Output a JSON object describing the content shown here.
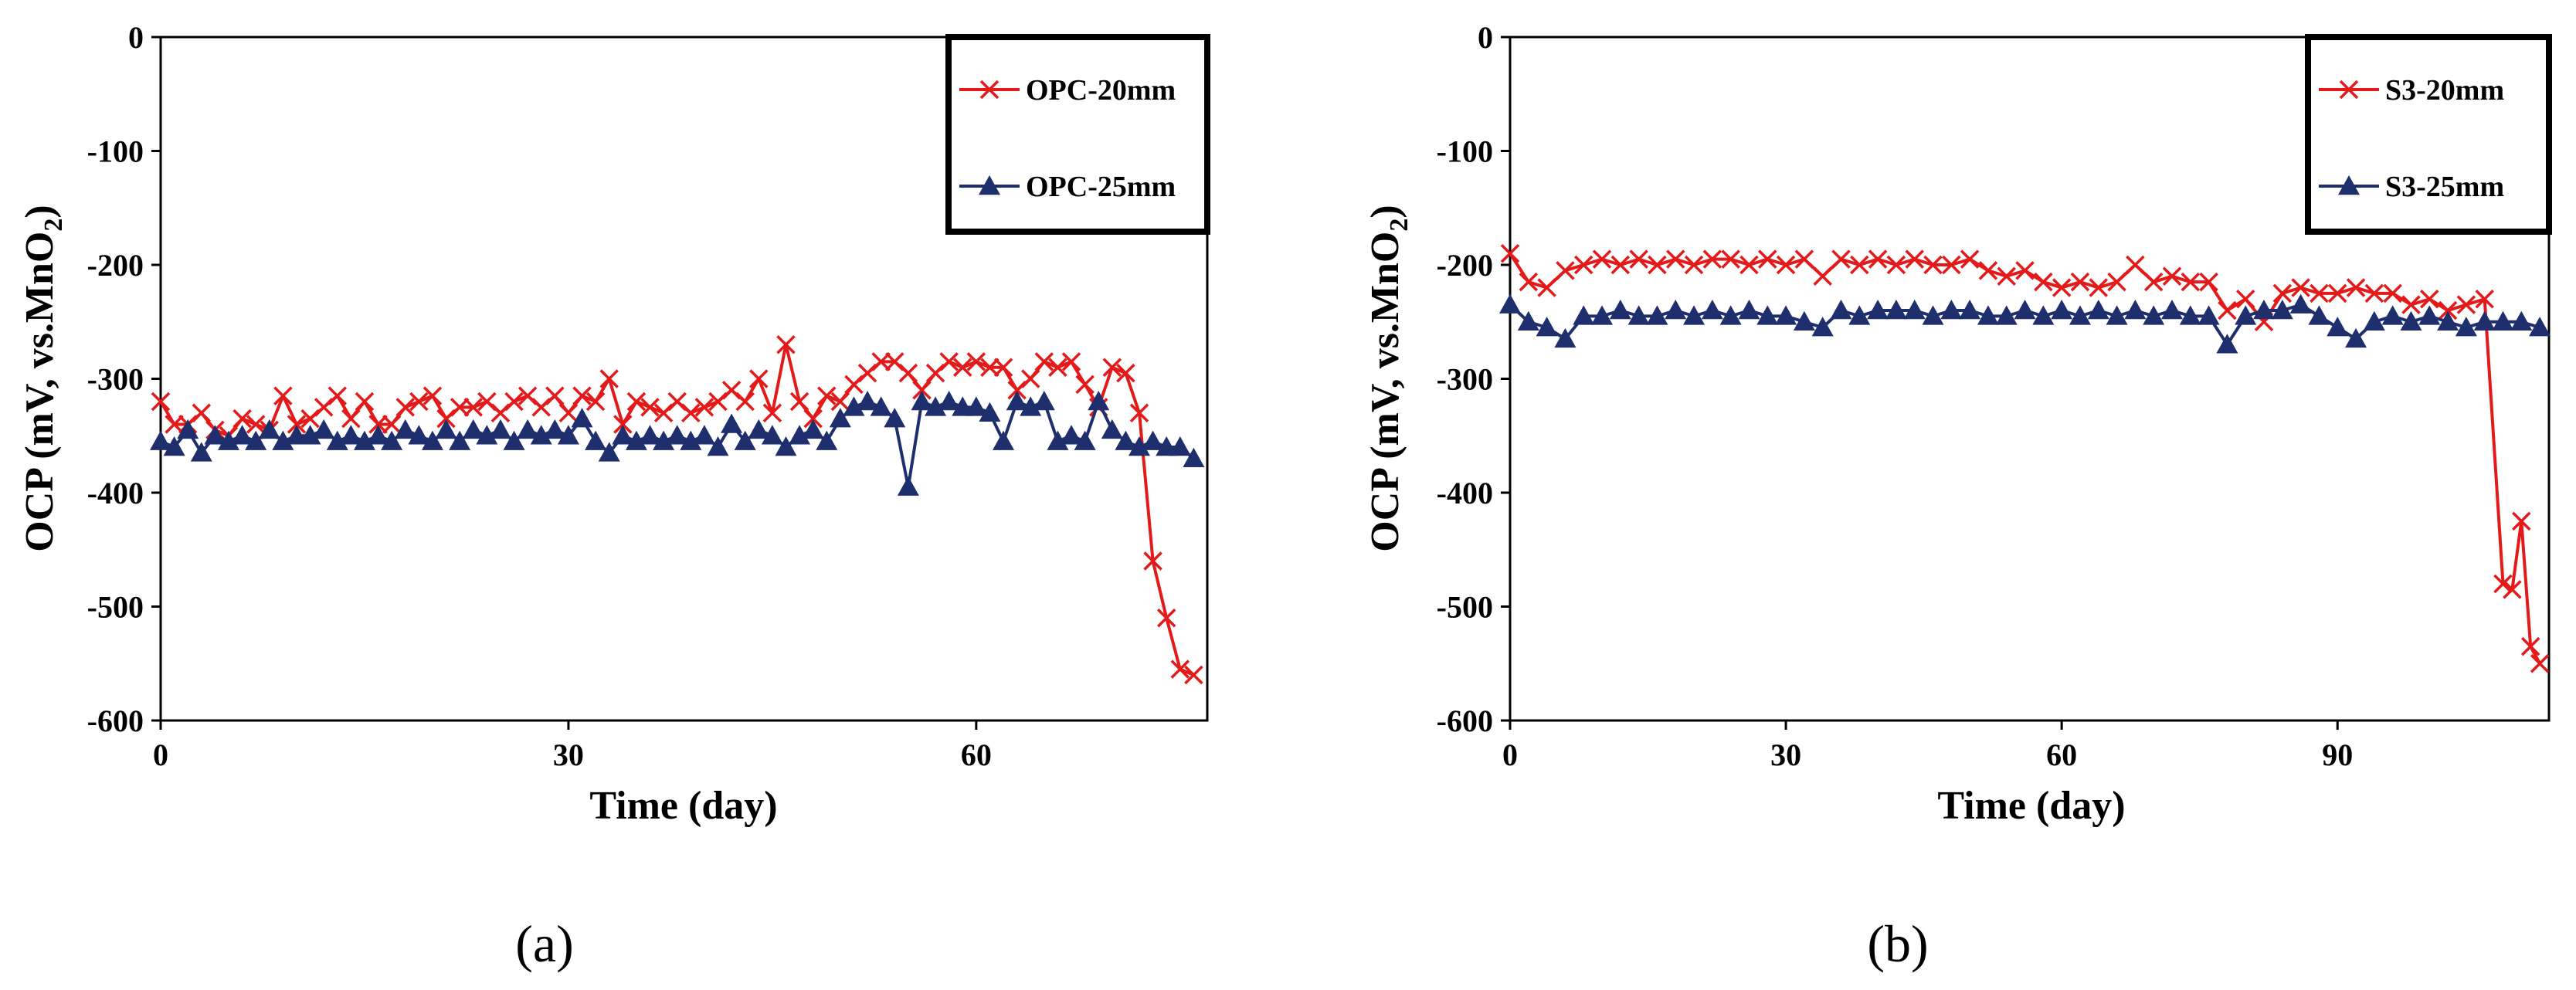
{
  "figure": {
    "panel_labels": [
      "(a)",
      "(b)"
    ]
  },
  "chart_data": [
    {
      "type": "line",
      "panel": "(a)",
      "title": "",
      "xlabel": "Time (day)",
      "ylabel_main": "OCP (mV, vs.MnO",
      "ylabel_sub": "2",
      "ylabel_end": ")",
      "xlim": [
        0,
        77
      ],
      "ylim": [
        -600,
        0
      ],
      "xticks": [
        0,
        30,
        60
      ],
      "yticks": [
        0,
        -100,
        -200,
        -300,
        -400,
        -500,
        -600
      ],
      "legend_position": "top-right",
      "series": [
        {
          "name": "OPC-20mm",
          "color": "#e41a1a",
          "marker": "x",
          "x": [
            0,
            1,
            2,
            3,
            4,
            5,
            6,
            7,
            8,
            9,
            10,
            11,
            12,
            13,
            14,
            15,
            16,
            17,
            18,
            19,
            20,
            21,
            22,
            23,
            24,
            25,
            26,
            27,
            28,
            29,
            30,
            31,
            32,
            33,
            34,
            35,
            36,
            37,
            38,
            39,
            40,
            41,
            42,
            43,
            44,
            45,
            46,
            47,
            48,
            49,
            50,
            51,
            52,
            53,
            54,
            55,
            56,
            57,
            58,
            59,
            60,
            61,
            62,
            63,
            64,
            65,
            66,
            67,
            68,
            69,
            70,
            71,
            72,
            73,
            74,
            75,
            76
          ],
          "values": [
            -320,
            -340,
            -340,
            -330,
            -345,
            -350,
            -335,
            -340,
            -345,
            -315,
            -340,
            -335,
            -325,
            -315,
            -335,
            -320,
            -340,
            -340,
            -325,
            -320,
            -315,
            -335,
            -325,
            -325,
            -320,
            -330,
            -320,
            -315,
            -325,
            -315,
            -330,
            -315,
            -320,
            -300,
            -340,
            -320,
            -325,
            -330,
            -320,
            -330,
            -325,
            -320,
            -310,
            -320,
            -300,
            -330,
            -270,
            -320,
            -335,
            -315,
            -320,
            -305,
            -295,
            -285,
            -285,
            -295,
            -310,
            -295,
            -285,
            -290,
            -285,
            -290,
            -290,
            -310,
            -300,
            -285,
            -290,
            -285,
            -305,
            -325,
            -290,
            -295,
            -330,
            -460,
            -510,
            -555,
            -560
          ]
        },
        {
          "name": "OPC-25mm",
          "color": "#1f2f6e",
          "marker": "triangle",
          "x": [
            0,
            1,
            2,
            3,
            4,
            5,
            6,
            7,
            8,
            9,
            10,
            11,
            12,
            13,
            14,
            15,
            16,
            17,
            18,
            19,
            20,
            21,
            22,
            23,
            24,
            25,
            26,
            27,
            28,
            29,
            30,
            31,
            32,
            33,
            34,
            35,
            36,
            37,
            38,
            39,
            40,
            41,
            42,
            43,
            44,
            45,
            46,
            47,
            48,
            49,
            50,
            51,
            52,
            53,
            54,
            55,
            56,
            57,
            58,
            59,
            60,
            61,
            62,
            63,
            64,
            65,
            66,
            67,
            68,
            69,
            70,
            71,
            72,
            73,
            74,
            75,
            76
          ],
          "values": [
            -355,
            -360,
            -345,
            -365,
            -350,
            -355,
            -350,
            -355,
            -345,
            -355,
            -350,
            -350,
            -345,
            -355,
            -350,
            -355,
            -350,
            -355,
            -345,
            -350,
            -355,
            -345,
            -355,
            -345,
            -350,
            -345,
            -355,
            -345,
            -350,
            -345,
            -350,
            -335,
            -355,
            -365,
            -350,
            -355,
            -350,
            -355,
            -350,
            -355,
            -350,
            -360,
            -340,
            -355,
            -345,
            -350,
            -360,
            -350,
            -345,
            -355,
            -335,
            -325,
            -320,
            -325,
            -335,
            -395,
            -320,
            -325,
            -320,
            -325,
            -325,
            -330,
            -355,
            -320,
            -325,
            -320,
            -355,
            -350,
            -355,
            -320,
            -345,
            -355,
            -360,
            -355,
            -360,
            -360,
            -370
          ]
        }
      ]
    },
    {
      "type": "line",
      "panel": "(b)",
      "title": "",
      "xlabel": "Time (day)",
      "ylabel_main": "OCP (mV, vs.MnO",
      "ylabel_sub": "2",
      "ylabel_end": ")",
      "xlim": [
        0,
        113
      ],
      "ylim": [
        -600,
        0
      ],
      "xticks": [
        0,
        30,
        60,
        90
      ],
      "yticks": [
        0,
        -100,
        -200,
        -300,
        -400,
        -500,
        -600
      ],
      "legend_position": "top-right",
      "series": [
        {
          "name": "S3-20mm",
          "color": "#e41a1a",
          "marker": "x",
          "x": [
            0,
            2,
            4,
            6,
            8,
            10,
            12,
            14,
            16,
            18,
            20,
            22,
            24,
            26,
            28,
            30,
            32,
            34,
            36,
            38,
            40,
            42,
            44,
            46,
            48,
            50,
            52,
            54,
            56,
            58,
            60,
            62,
            64,
            66,
            68,
            70,
            72,
            74,
            76,
            78,
            80,
            82,
            84,
            86,
            88,
            90,
            92,
            94,
            96,
            98,
            100,
            102,
            104,
            106,
            108,
            109,
            110,
            111,
            112
          ],
          "values": [
            -190,
            -215,
            -220,
            -205,
            -200,
            -195,
            -200,
            -195,
            -200,
            -195,
            -200,
            -195,
            -195,
            -200,
            -195,
            -200,
            -195,
            -210,
            -195,
            -200,
            -195,
            -200,
            -195,
            -200,
            -200,
            -195,
            -205,
            -210,
            -205,
            -215,
            -220,
            -215,
            -220,
            -215,
            -200,
            -215,
            -210,
            -215,
            -215,
            -240,
            -230,
            -250,
            -225,
            -220,
            -225,
            -225,
            -220,
            -225,
            -225,
            -235,
            -230,
            -240,
            -235,
            -230,
            -480,
            -485,
            -425,
            -535,
            -550
          ]
        },
        {
          "name": "S3-25mm",
          "color": "#1f2f6e",
          "marker": "triangle",
          "x": [
            0,
            2,
            4,
            6,
            8,
            10,
            12,
            14,
            16,
            18,
            20,
            22,
            24,
            26,
            28,
            30,
            32,
            34,
            36,
            38,
            40,
            42,
            44,
            46,
            48,
            50,
            52,
            54,
            56,
            58,
            60,
            62,
            64,
            66,
            68,
            70,
            72,
            74,
            76,
            78,
            80,
            82,
            84,
            86,
            88,
            90,
            92,
            94,
            96,
            98,
            100,
            102,
            104,
            106,
            108,
            110,
            112
          ],
          "values": [
            -235,
            -250,
            -255,
            -265,
            -245,
            -245,
            -240,
            -245,
            -245,
            -240,
            -245,
            -240,
            -245,
            -240,
            -245,
            -245,
            -250,
            -255,
            -240,
            -245,
            -240,
            -240,
            -240,
            -245,
            -240,
            -240,
            -245,
            -245,
            -240,
            -245,
            -240,
            -245,
            -240,
            -245,
            -240,
            -245,
            -240,
            -245,
            -245,
            -270,
            -245,
            -240,
            -240,
            -235,
            -245,
            -255,
            -265,
            -250,
            -245,
            -250,
            -245,
            -250,
            -255,
            -250,
            -250,
            -250,
            -255
          ]
        }
      ]
    }
  ]
}
